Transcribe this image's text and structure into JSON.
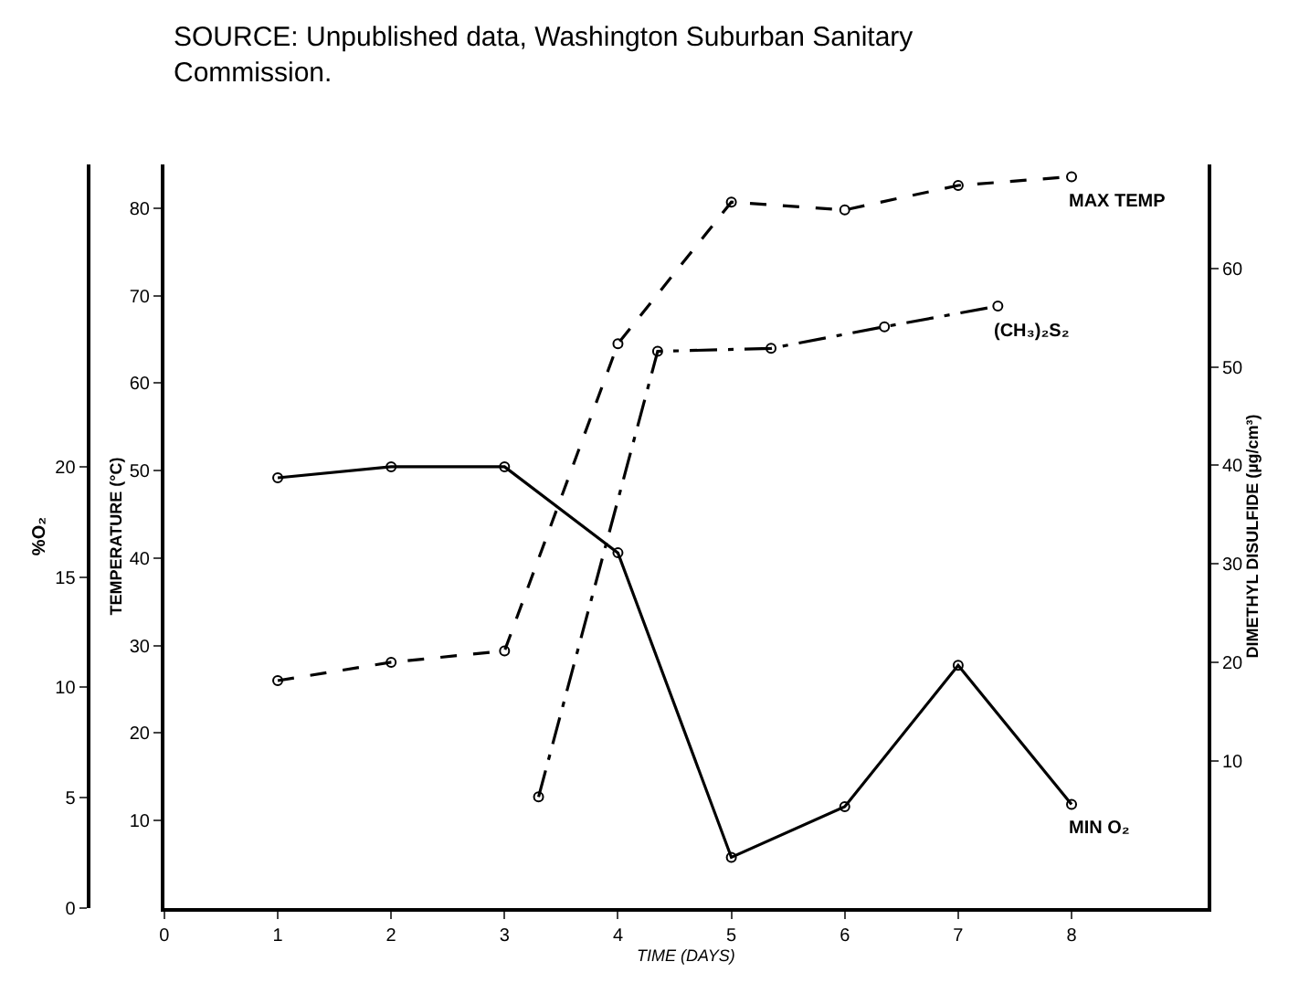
{
  "chart_data": {
    "type": "line",
    "annotations": [
      "SOURCE: Unpublished data, Washington Suburban Sanitary Commission."
    ],
    "xlabel": "TIME (DAYS)",
    "ylabel": "TEMPERATURE (°C)",
    "y2label": "%O₂",
    "y3label": "DIMETHYL DISULFIDE (µg/cm³)",
    "xlim": [
      0,
      9.2
    ],
    "xticks": [
      0,
      1,
      2,
      3,
      4,
      5,
      6,
      7,
      8
    ],
    "ylim": [
      0,
      85
    ],
    "yticks": [
      10,
      20,
      30,
      40,
      50,
      60,
      70,
      80
    ],
    "y2lim": [
      0,
      33.7
    ],
    "y2ticks": [
      0,
      5,
      10,
      15,
      20
    ],
    "y3lim": [
      -5,
      70.6
    ],
    "y3ticks": [
      10,
      20,
      30,
      40,
      50,
      60
    ],
    "marker": "circle",
    "legend": false,
    "series": [
      {
        "name": "MAX TEMP",
        "color": "#000000",
        "line_style": "dashed",
        "x": [
          1,
          2,
          3,
          4,
          5,
          6,
          7,
          8
        ],
        "values": [
          26,
          28.1,
          29.4,
          64.5,
          80.7,
          79.8,
          82.6,
          83.6
        ]
      },
      {
        "name": "(CH₃)₂S₂",
        "color": "#000000",
        "line_style": "dashdot",
        "axis": "y3",
        "x": [
          3.3,
          4.35,
          5.35,
          6.35,
          7.35
        ],
        "values": [
          6.3,
          51.6,
          51.9,
          54.1,
          56.2
        ]
      },
      {
        "name": "MIN O₂",
        "color": "#000000",
        "line_style": "solid",
        "axis": "y2",
        "x": [
          1,
          2,
          3,
          4,
          5,
          6,
          7,
          8
        ],
        "values": [
          19.5,
          20.0,
          20.0,
          16.1,
          2.3,
          4.6,
          11.0,
          4.7
        ]
      }
    ]
  }
}
